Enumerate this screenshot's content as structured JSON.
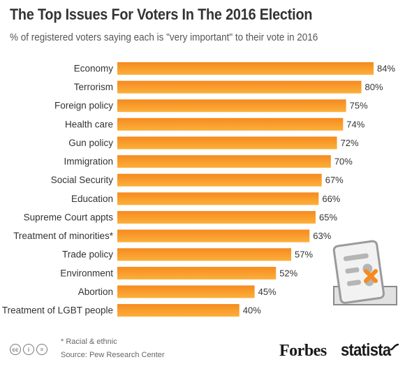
{
  "header": {
    "title": "The Top Issues For Voters In The 2016 Election",
    "subtitle": "% of registered voters saying each is \"very important\" to their vote in 2016"
  },
  "chart_data": {
    "type": "bar",
    "orientation": "horizontal",
    "categories": [
      "Economy",
      "Terrorism",
      "Foreign policy",
      "Health care",
      "Gun policy",
      "Immigration",
      "Social Security",
      "Education",
      "Supreme Court appts",
      "Treatment of minorities*",
      "Trade policy",
      "Environment",
      "Abortion",
      "Treatment of LGBT people"
    ],
    "values": [
      84,
      80,
      75,
      74,
      72,
      70,
      67,
      66,
      65,
      63,
      57,
      52,
      45,
      40
    ],
    "value_labels": [
      "84%",
      "80%",
      "75%",
      "74%",
      "72%",
      "70%",
      "67%",
      "66%",
      "65%",
      "63%",
      "57%",
      "52%",
      "45%",
      "40%"
    ],
    "xlim": [
      0,
      84
    ],
    "grid": false,
    "colors": {
      "bar_top": "#f68a1f",
      "bar_bottom": "#fbb03b"
    }
  },
  "footer": {
    "footnote": "* Racial & ethnic",
    "source": "Source: Pew Research Center",
    "brand_forbes": "Forbes",
    "brand_statista": "statista",
    "license_icons": [
      "cc-icon",
      "by-icon",
      "nd-icon"
    ]
  }
}
